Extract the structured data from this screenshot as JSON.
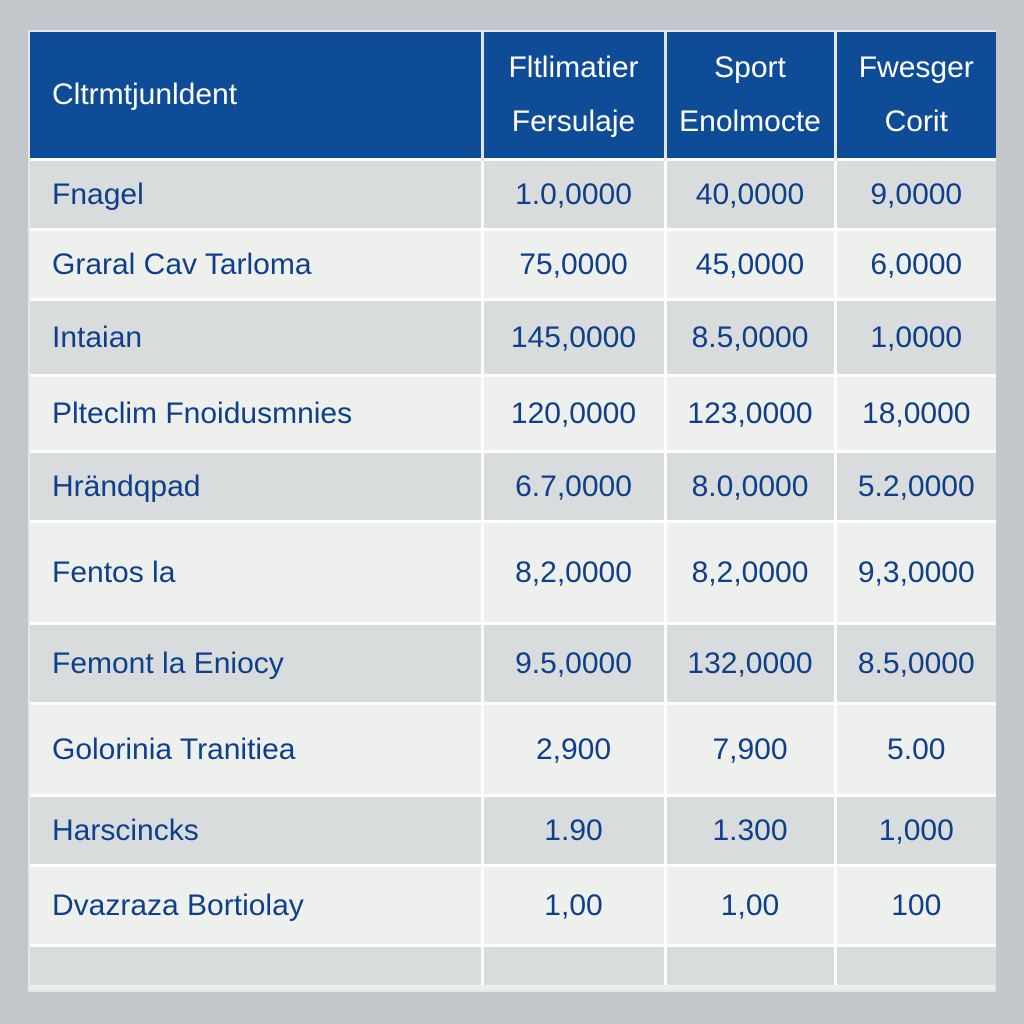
{
  "table": {
    "headers": [
      {
        "lines": [
          "Cltrmtjunldent"
        ]
      },
      {
        "lines": [
          "Fltlimatier",
          "Fersulaje"
        ]
      },
      {
        "lines": [
          "Sport",
          "Enolmocte"
        ]
      },
      {
        "lines": [
          "Fwesger",
          "Corit"
        ]
      }
    ],
    "rows": [
      {
        "name": "Fnagel",
        "values": [
          "1.0,0000",
          "40,0000",
          "9,0000"
        ]
      },
      {
        "name": "Graral Cav Tarloma",
        "values": [
          "75,0000",
          "45,0000",
          "6,0000"
        ]
      },
      {
        "name": "Intaian",
        "values": [
          "145,0000",
          "8.5,0000",
          "1,0000"
        ]
      },
      {
        "name": "Pltecl​im Fnoidusmnies",
        "values": [
          "120,0000",
          "123,0000",
          "18,0000"
        ]
      },
      {
        "name": "Hrändqpad",
        "values": [
          "6.7,0000",
          "8.0,0000",
          "5.2,0000"
        ]
      },
      {
        "name": "Fentos la",
        "values": [
          "8,2,0000",
          "8,2,0000",
          "9,3,0000"
        ]
      },
      {
        "name": "Femont la Eniocy",
        "values": [
          "9.5,0000",
          "132,0000",
          "8.5,0000"
        ]
      },
      {
        "name": "Golorinia Tranitiea",
        "values": [
          "2,900",
          "7,900",
          "5.00"
        ]
      },
      {
        "name": "Harscincks",
        "values": [
          "1.90",
          "1.300",
          "1,000"
        ]
      },
      {
        "name": "Dvazraza Bortiolay",
        "values": [
          "1,00",
          "1,00",
          "100"
        ]
      }
    ]
  }
}
